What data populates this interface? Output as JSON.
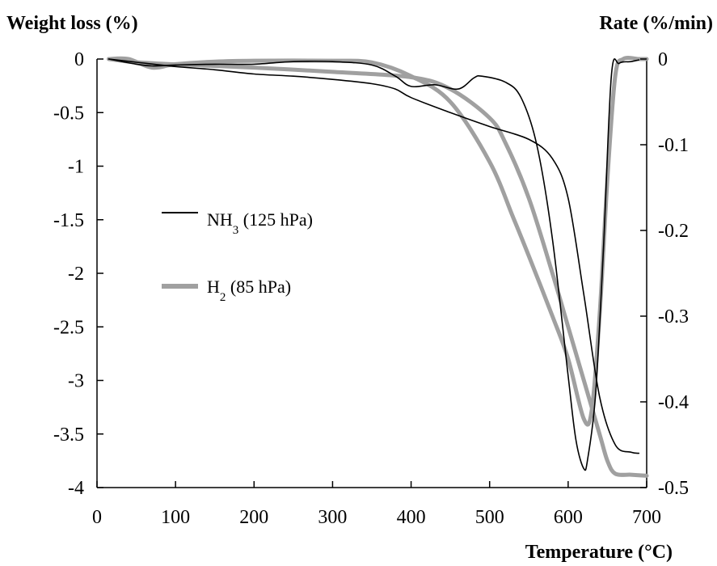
{
  "chart_data": {
    "type": "line",
    "y_left_label": "Weight loss (%)",
    "y_right_label": "Rate (%/min)",
    "x_label": "Temperature (°C)",
    "xlim": [
      0,
      700
    ],
    "ylim_left": [
      -4,
      0
    ],
    "ylim_right": [
      -0.5,
      0
    ],
    "x_ticks": [
      "0",
      "100",
      "200",
      "300",
      "400",
      "500",
      "600",
      "700"
    ],
    "y_left_ticks": [
      "0",
      "-0.5",
      "-1",
      "-1.5",
      "-2",
      "-2.5",
      "-3",
      "-3.5",
      "-4"
    ],
    "y_right_ticks": [
      "0",
      "-0.1",
      "-0.2",
      "-0.3",
      "-0.4",
      "-0.5"
    ],
    "grid": false,
    "legend_position": "center-left",
    "series": [
      {
        "name": "NH3 (125 hPa)",
        "name_main": "NH",
        "name_sub": "3",
        "name_rest": " (125 hPa)",
        "color": "#000000",
        "style": "thin",
        "kind": "weight_loss",
        "axis": "left",
        "x": [
          15,
          50,
          100,
          150,
          200,
          250,
          300,
          350,
          380,
          400,
          450,
          500,
          550,
          580,
          600,
          620,
          640,
          660,
          680,
          690
        ],
        "y": [
          0,
          -0.03,
          -0.07,
          -0.1,
          -0.14,
          -0.16,
          -0.19,
          -0.23,
          -0.28,
          -0.36,
          -0.5,
          -0.63,
          -0.75,
          -0.93,
          -1.3,
          -2.2,
          -3.15,
          -3.6,
          -3.67,
          -3.68
        ]
      },
      {
        "name": "NH3 (125 hPa) rate",
        "color": "#000000",
        "style": "thin",
        "kind": "rate",
        "axis": "right",
        "x": [
          15,
          50,
          70,
          100,
          150,
          200,
          250,
          300,
          350,
          380,
          400,
          430,
          460,
          480,
          490,
          520,
          540,
          560,
          580,
          600,
          610,
          620,
          625,
          635,
          645,
          655,
          665,
          680,
          690
        ],
        "y": [
          0,
          -0.006,
          -0.008,
          -0.007,
          -0.006,
          -0.006,
          -0.003,
          -0.003,
          -0.007,
          -0.02,
          -0.032,
          -0.03,
          -0.035,
          -0.022,
          -0.02,
          -0.027,
          -0.045,
          -0.1,
          -0.21,
          -0.37,
          -0.445,
          -0.478,
          -0.466,
          -0.39,
          -0.22,
          -0.02,
          -0.005,
          -0.003,
          -0.001
        ]
      },
      {
        "name": "H2 (85 hPa)",
        "name_main": "H",
        "name_sub": "2",
        "name_rest": " (85 hPa)",
        "color": "#a0a0a0",
        "style": "thick",
        "kind": "weight_loss",
        "axis": "left",
        "x": [
          15,
          50,
          100,
          200,
          300,
          400,
          450,
          500,
          520,
          550,
          580,
          600,
          620,
          640,
          650,
          660,
          680,
          700
        ],
        "y": [
          0,
          -0.03,
          -0.05,
          -0.08,
          -0.12,
          -0.17,
          -0.28,
          -0.55,
          -0.78,
          -1.3,
          -2.0,
          -2.5,
          -3.0,
          -3.5,
          -3.75,
          -3.87,
          -3.88,
          -3.89
        ]
      },
      {
        "name": "H2 (85 hPa) rate",
        "color": "#a0a0a0",
        "style": "thick",
        "kind": "rate",
        "axis": "right",
        "x": [
          15,
          40,
          70,
          100,
          150,
          200,
          300,
          350,
          400,
          450,
          500,
          530,
          550,
          580,
          600,
          620,
          630,
          640,
          650,
          660,
          670,
          690,
          700
        ],
        "y": [
          0,
          0,
          -0.01,
          -0.006,
          -0.003,
          -0.002,
          -0.002,
          -0.004,
          -0.02,
          -0.05,
          -0.12,
          -0.185,
          -0.23,
          -0.3,
          -0.35,
          -0.42,
          -0.41,
          -0.3,
          -0.14,
          -0.02,
          0,
          0,
          0
        ]
      }
    ]
  }
}
